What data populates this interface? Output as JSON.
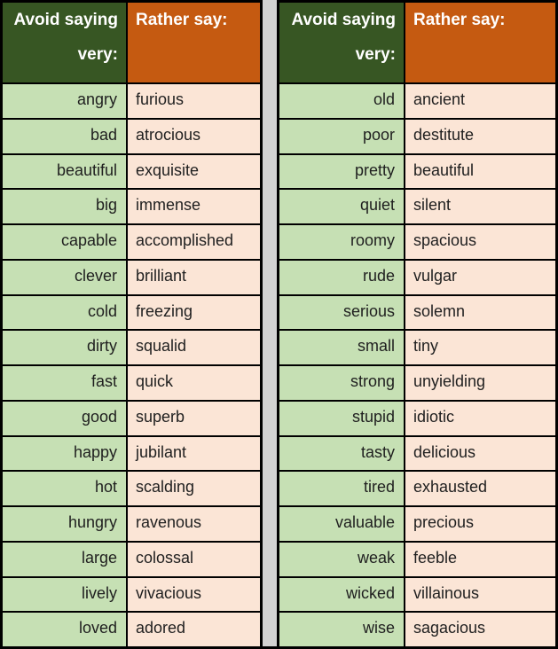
{
  "colors": {
    "header_green": "#375623",
    "header_orange": "#c55a11",
    "row_green": "#c6e0b4",
    "row_peach": "#fbe5d6",
    "gutter_gray": "#d2d2d2",
    "border_black": "#000000",
    "header_text": "#ffffff",
    "body_text": "#1f1f1f"
  },
  "tables": [
    {
      "header": {
        "avoid_line1": "Avoid saying",
        "avoid_line2": "very:",
        "rather": "Rather say:"
      },
      "rows": [
        {
          "avoid": "angry",
          "rather": "furious"
        },
        {
          "avoid": "bad",
          "rather": "atrocious"
        },
        {
          "avoid": "beautiful",
          "rather": "exquisite"
        },
        {
          "avoid": "big",
          "rather": "immense"
        },
        {
          "avoid": "capable",
          "rather": "accomplished"
        },
        {
          "avoid": "clever",
          "rather": "brilliant"
        },
        {
          "avoid": "cold",
          "rather": "freezing"
        },
        {
          "avoid": "dirty",
          "rather": "squalid"
        },
        {
          "avoid": "fast",
          "rather": "quick"
        },
        {
          "avoid": "good",
          "rather": "superb"
        },
        {
          "avoid": "happy",
          "rather": "jubilant"
        },
        {
          "avoid": "hot",
          "rather": "scalding"
        },
        {
          "avoid": "hungry",
          "rather": "ravenous"
        },
        {
          "avoid": "large",
          "rather": "colossal"
        },
        {
          "avoid": "lively",
          "rather": "vivacious"
        },
        {
          "avoid": "loved",
          "rather": "adored"
        }
      ]
    },
    {
      "header": {
        "avoid_line1": "Avoid saying",
        "avoid_line2": "very:",
        "rather": "Rather say:"
      },
      "rows": [
        {
          "avoid": "old",
          "rather": "ancient"
        },
        {
          "avoid": "poor",
          "rather": "destitute"
        },
        {
          "avoid": "pretty",
          "rather": "beautiful"
        },
        {
          "avoid": "quiet",
          "rather": "silent"
        },
        {
          "avoid": "roomy",
          "rather": "spacious"
        },
        {
          "avoid": "rude",
          "rather": "vulgar"
        },
        {
          "avoid": "serious",
          "rather": "solemn"
        },
        {
          "avoid": "small",
          "rather": "tiny"
        },
        {
          "avoid": "strong",
          "rather": "unyielding"
        },
        {
          "avoid": "stupid",
          "rather": "idiotic"
        },
        {
          "avoid": "tasty",
          "rather": "delicious"
        },
        {
          "avoid": "tired",
          "rather": "exhausted"
        },
        {
          "avoid": "valuable",
          "rather": "precious"
        },
        {
          "avoid": "weak",
          "rather": "feeble"
        },
        {
          "avoid": "wicked",
          "rather": "villainous"
        },
        {
          "avoid": "wise",
          "rather": "sagacious"
        }
      ]
    }
  ]
}
